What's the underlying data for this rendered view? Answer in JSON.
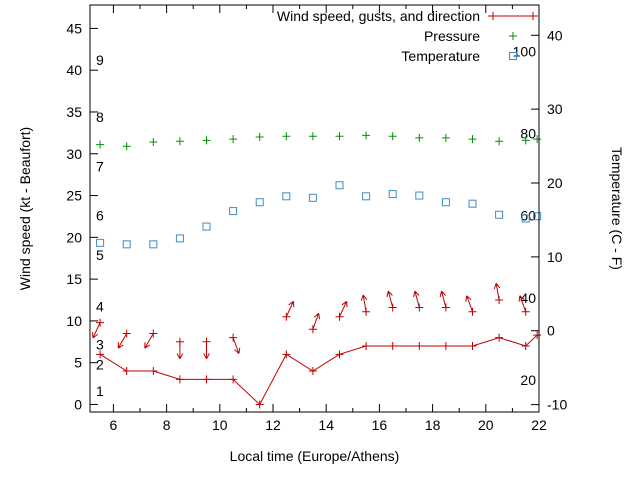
{
  "chart_data": {
    "type": "line",
    "title": "",
    "xlabel": "Local time (Europe/Athens)",
    "x_range": [
      5.12,
      22
    ],
    "x_ticks": [
      6,
      8,
      10,
      12,
      14,
      16,
      18,
      20,
      22
    ],
    "x_minor_ticks": [
      7,
      9,
      11,
      13,
      15,
      17,
      19,
      21
    ],
    "y_left": {
      "label": "Wind speed (kt - Beaufort)",
      "range": [
        -0.9,
        47.8
      ],
      "ticks": [
        0,
        5,
        10,
        15,
        20,
        25,
        30,
        35,
        40,
        45
      ]
    },
    "y_right": {
      "label": "Temperature (C - F)",
      "range": [
        -11.0,
        44.1
      ],
      "ticks": [
        -10,
        0,
        10,
        20,
        30,
        40
      ]
    },
    "beaufort_labels": [
      {
        "label": "1",
        "kt": 1.6
      },
      {
        "label": "2",
        "kt": 4.8
      },
      {
        "label": "3",
        "kt": 7.2
      },
      {
        "label": "4",
        "kt": 11.7
      },
      {
        "label": "5",
        "kt": 17.9
      },
      {
        "label": "6",
        "kt": 22.6
      },
      {
        "label": "7",
        "kt": 28.5
      },
      {
        "label": "8",
        "kt": 34.4
      },
      {
        "label": "9",
        "kt": 41.2
      }
    ],
    "fahrenheit_labels": [
      {
        "label": "20",
        "c": -6.7
      },
      {
        "label": "40",
        "c": 4.4
      },
      {
        "label": "60",
        "c": 15.6
      },
      {
        "label": "80",
        "c": 26.7
      },
      {
        "label": "100",
        "c": 37.8
      }
    ],
    "legend": [
      {
        "label": "Wind speed, gusts, and direction",
        "style": "line-plus",
        "color": "#c00000"
      },
      {
        "label": "Pressure",
        "style": "plus",
        "color": "#009100"
      },
      {
        "label": "Temperature",
        "style": "square",
        "color": "#3d8dc6"
      }
    ],
    "colors": {
      "wind": "#c00000",
      "pressure": "#009100",
      "temperature": "#3d8dc6",
      "axis": "#000000",
      "background": "#ffffff"
    },
    "x": [
      5.5,
      6.5,
      7.5,
      8.5,
      9.5,
      10.5,
      11.5,
      12.5,
      13.5,
      14.5,
      15.5,
      16.5,
      17.5,
      18.5,
      19.5,
      20.5,
      21.5,
      21.93
    ],
    "series": {
      "wind_speed_kt": [
        6,
        4,
        4,
        3,
        3,
        3,
        0,
        6,
        4,
        6,
        7,
        7,
        7,
        7,
        7,
        8,
        7,
        8.3
      ],
      "gust_kt": [
        9.8,
        8.5,
        8.5,
        7.5,
        7.5,
        8,
        null,
        10.5,
        9,
        10.5,
        11.1,
        11.6,
        11.6,
        11.6,
        11.1,
        12.5,
        11.1,
        null
      ],
      "gust_direction_deg": [
        205,
        210,
        210,
        180,
        180,
        160,
        null,
        25,
        20,
        25,
        350,
        345,
        345,
        345,
        340,
        350,
        340,
        null
      ],
      "pressure_plotted_kt": [
        31.1,
        30.9,
        31.4,
        31.5,
        31.6,
        31.75,
        32.0,
        32.1,
        32.1,
        32.1,
        32.2,
        32.1,
        31.9,
        31.9,
        31.75,
        31.5,
        31.6,
        31.75
      ],
      "temperature_c": [
        11.9,
        11.7,
        11.7,
        12.5,
        14.1,
        16.2,
        17.4,
        18.2,
        18.0,
        19.7,
        18.2,
        18.5,
        18.3,
        17.4,
        17.2,
        15.7,
        15.2,
        15.5
      ]
    }
  }
}
